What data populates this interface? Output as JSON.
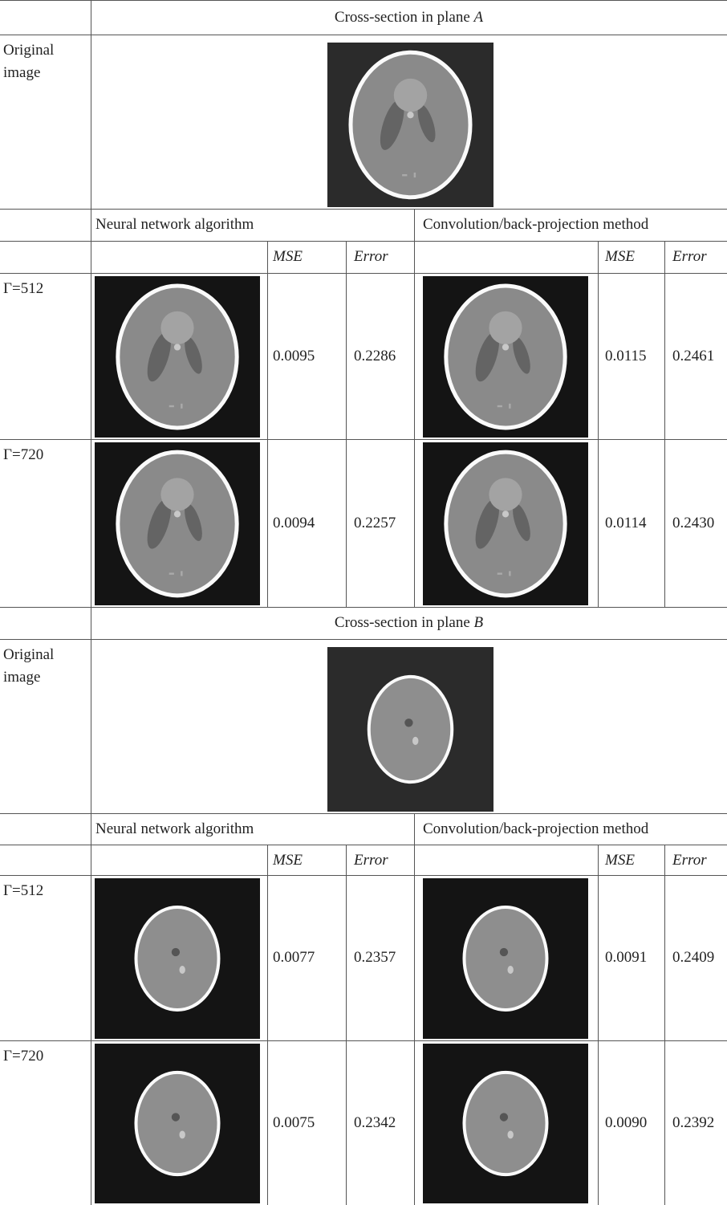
{
  "sections": [
    {
      "title": "Cross-section in plane",
      "plane": "A",
      "original_label": "Original image",
      "methods": [
        "Neural network algorithm",
        "Convolution/back-projection method"
      ],
      "metrics": [
        "MSE",
        "Error"
      ],
      "rows": [
        {
          "label": "Γ=512",
          "values": [
            "0.0095",
            "0.2286",
            "0.0115",
            "0.2461"
          ]
        },
        {
          "label": "Γ=720",
          "values": [
            "0.0094",
            "0.2257",
            "0.0114",
            "0.2430"
          ]
        }
      ]
    },
    {
      "title": "Cross-section in plane",
      "plane": "B",
      "original_label": "Original image",
      "methods": [
        "Neural network algorithm",
        "Convolution/back-projection method"
      ],
      "metrics": [
        "MSE",
        "Error"
      ],
      "rows": [
        {
          "label": "Γ=512",
          "values": [
            "0.0077",
            "0.2357",
            "0.0091",
            "0.2409"
          ]
        },
        {
          "label": "Γ=720",
          "values": [
            "0.0075",
            "0.2342",
            "0.0090",
            "0.2392"
          ]
        }
      ]
    }
  ]
}
